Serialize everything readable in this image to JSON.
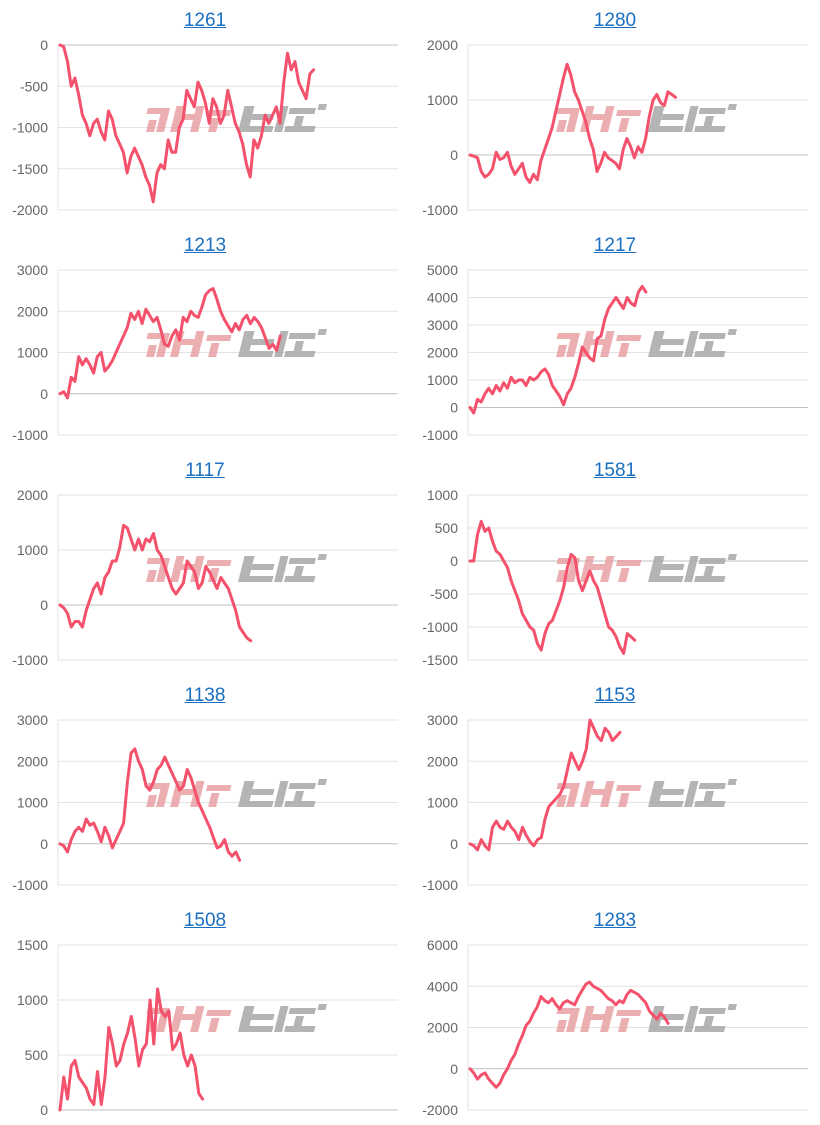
{
  "colors": {
    "line": "#f4516c",
    "grid": "#e3e3e3",
    "axis": "#bfbfbf",
    "link": "#1a6fc0",
    "watermark_pink": "#e8a0a4",
    "watermark_gray": "#a8a8a8"
  },
  "chart_data": [
    {
      "type": "line",
      "title": "1261",
      "ylim": [
        -2000,
        0
      ],
      "yticks": [
        0,
        -500,
        -1000,
        -1500,
        -2000
      ],
      "values": [
        0,
        -20,
        -200,
        -500,
        -400,
        -600,
        -850,
        -950,
        -1100,
        -950,
        -900,
        -1050,
        -1150,
        -800,
        -900,
        -1100,
        -1200,
        -1300,
        -1550,
        -1350,
        -1250,
        -1350,
        -1450,
        -1600,
        -1700,
        -1900,
        -1550,
        -1450,
        -1500,
        -1150,
        -1300,
        -1300,
        -1000,
        -900,
        -550,
        -650,
        -750,
        -450,
        -550,
        -700,
        -950,
        -650,
        -750,
        -950,
        -850,
        -550,
        -750,
        -950,
        -1050,
        -1200,
        -1450,
        -1600,
        -1150,
        -1250,
        -1100,
        -850,
        -950,
        -850,
        -750,
        -950,
        -450,
        -100,
        -300,
        -200,
        -450,
        -550,
        -650,
        -350,
        -300
      ]
    },
    {
      "type": "line",
      "title": "1280",
      "ylim": [
        -1000,
        2000
      ],
      "yticks": [
        2000,
        1000,
        0,
        -1000
      ],
      "values": [
        0,
        -20,
        -50,
        -300,
        -400,
        -350,
        -250,
        50,
        -80,
        -50,
        50,
        -200,
        -350,
        -250,
        -150,
        -400,
        -500,
        -350,
        -450,
        -100,
        100,
        300,
        500,
        800,
        1100,
        1400,
        1650,
        1450,
        1150,
        1000,
        800,
        600,
        300,
        100,
        -300,
        -150,
        50,
        -50,
        -100,
        -150,
        -250,
        100,
        300,
        150,
        -50,
        150,
        50,
        300,
        700,
        1000,
        1100,
        950,
        900,
        1150,
        1100,
        1050
      ]
    },
    {
      "type": "line",
      "title": "1213",
      "ylim": [
        -1000,
        3000
      ],
      "yticks": [
        3000,
        2000,
        1000,
        0,
        -1000
      ],
      "values": [
        0,
        50,
        -100,
        400,
        300,
        900,
        700,
        850,
        700,
        500,
        900,
        1000,
        550,
        650,
        800,
        1000,
        1200,
        1400,
        1600,
        1950,
        1800,
        2000,
        1700,
        2050,
        1900,
        1750,
        1850,
        1550,
        1200,
        1150,
        1400,
        1550,
        1300,
        1850,
        1750,
        2000,
        1900,
        1850,
        2100,
        2400,
        2500,
        2550,
        2300,
        2000,
        1800,
        1650,
        1500,
        1700,
        1550,
        1800,
        1900,
        1700,
        1850,
        1750,
        1600,
        1350,
        1100,
        1200,
        1050,
        1400
      ]
    },
    {
      "type": "line",
      "title": "1217",
      "ylim": [
        -1000,
        5000
      ],
      "yticks": [
        5000,
        4000,
        3000,
        2000,
        1000,
        0,
        -1000
      ],
      "values": [
        0,
        -200,
        300,
        200,
        500,
        700,
        500,
        800,
        600,
        900,
        700,
        1100,
        900,
        1000,
        1000,
        800,
        1100,
        1000,
        1100,
        1300,
        1400,
        1200,
        800,
        600,
        400,
        100,
        500,
        700,
        1100,
        1600,
        2200,
        2000,
        1800,
        1700,
        2500,
        2600,
        3200,
        3600,
        3800,
        4000,
        3800,
        3600,
        4000,
        3800,
        3700,
        4200,
        4400,
        4200
      ]
    },
    {
      "type": "line",
      "title": "1117",
      "ylim": [
        -1000,
        2000
      ],
      "yticks": [
        2000,
        1000,
        0,
        -1000
      ],
      "values": [
        0,
        -50,
        -150,
        -400,
        -300,
        -300,
        -400,
        -100,
        100,
        300,
        400,
        200,
        500,
        600,
        800,
        800,
        1050,
        1450,
        1400,
        1200,
        1000,
        1200,
        1000,
        1200,
        1150,
        1300,
        1000,
        900,
        700,
        500,
        300,
        200,
        300,
        400,
        800,
        700,
        600,
        300,
        400,
        700,
        600,
        450,
        300,
        500,
        400,
        300,
        100,
        -100,
        -400,
        -500,
        -600,
        -650
      ]
    },
    {
      "type": "line",
      "title": "1581",
      "ylim": [
        -1500,
        1000
      ],
      "yticks": [
        1000,
        500,
        0,
        -500,
        -1000,
        -1500
      ],
      "values": [
        0,
        0,
        400,
        600,
        450,
        500,
        300,
        150,
        100,
        0,
        -100,
        -300,
        -450,
        -600,
        -800,
        -900,
        -1000,
        -1050,
        -1250,
        -1350,
        -1100,
        -950,
        -900,
        -750,
        -600,
        -400,
        -100,
        100,
        50,
        -300,
        -450,
        -300,
        -150,
        -300,
        -400,
        -600,
        -800,
        -1000,
        -1050,
        -1150,
        -1300,
        -1400,
        -1100,
        -1150,
        -1200
      ]
    },
    {
      "type": "line",
      "title": "1138",
      "ylim": [
        -1000,
        3000
      ],
      "yticks": [
        3000,
        2000,
        1000,
        0,
        -1000
      ],
      "values": [
        0,
        -50,
        -200,
        100,
        300,
        400,
        300,
        600,
        450,
        500,
        300,
        50,
        400,
        200,
        -100,
        100,
        300,
        500,
        1500,
        2200,
        2300,
        2000,
        1800,
        1400,
        1300,
        1500,
        1800,
        1900,
        2100,
        1900,
        1700,
        1500,
        1300,
        1400,
        1800,
        1600,
        1300,
        1000,
        800,
        600,
        400,
        150,
        -100,
        -50,
        100,
        -200,
        -300,
        -200,
        -400
      ]
    },
    {
      "type": "line",
      "title": "1153",
      "ylim": [
        -1000,
        3000
      ],
      "yticks": [
        3000,
        2000,
        1000,
        0,
        -1000
      ],
      "values": [
        0,
        -50,
        -150,
        100,
        -50,
        -150,
        400,
        550,
        400,
        350,
        550,
        400,
        300,
        100,
        400,
        200,
        50,
        -50,
        100,
        150,
        600,
        900,
        1000,
        1100,
        1200,
        1400,
        1800,
        2200,
        2000,
        1800,
        2000,
        2300,
        3000,
        2800,
        2600,
        2500,
        2800,
        2700,
        2500,
        2600,
        2700
      ]
    },
    {
      "type": "line",
      "title": "1508",
      "ylim": [
        0,
        1500
      ],
      "yticks": [
        1500,
        1000,
        500,
        0
      ],
      "values": [
        0,
        300,
        100,
        400,
        450,
        300,
        250,
        200,
        100,
        50,
        350,
        50,
        300,
        750,
        600,
        400,
        450,
        600,
        700,
        850,
        650,
        400,
        550,
        600,
        1000,
        600,
        1100,
        900,
        850,
        900,
        550,
        600,
        700,
        500,
        400,
        500,
        400,
        150,
        100
      ]
    },
    {
      "type": "line",
      "title": "1283",
      "ylim": [
        -2000,
        6000
      ],
      "yticks": [
        6000,
        4000,
        2000,
        0,
        -2000
      ],
      "values": [
        0,
        -200,
        -500,
        -300,
        -200,
        -500,
        -700,
        -900,
        -700,
        -300,
        0,
        400,
        700,
        1200,
        1600,
        2100,
        2300,
        2700,
        3000,
        3500,
        3300,
        3200,
        3400,
        3100,
        2900,
        3200,
        3300,
        3200,
        3100,
        3500,
        3800,
        4100,
        4200,
        4000,
        3900,
        3800,
        3600,
        3400,
        3300,
        3100,
        3300,
        3200,
        3600,
        3800,
        3700,
        3600,
        3400,
        3200,
        2800,
        2600,
        2400,
        2700,
        2500,
        2200
      ]
    }
  ]
}
